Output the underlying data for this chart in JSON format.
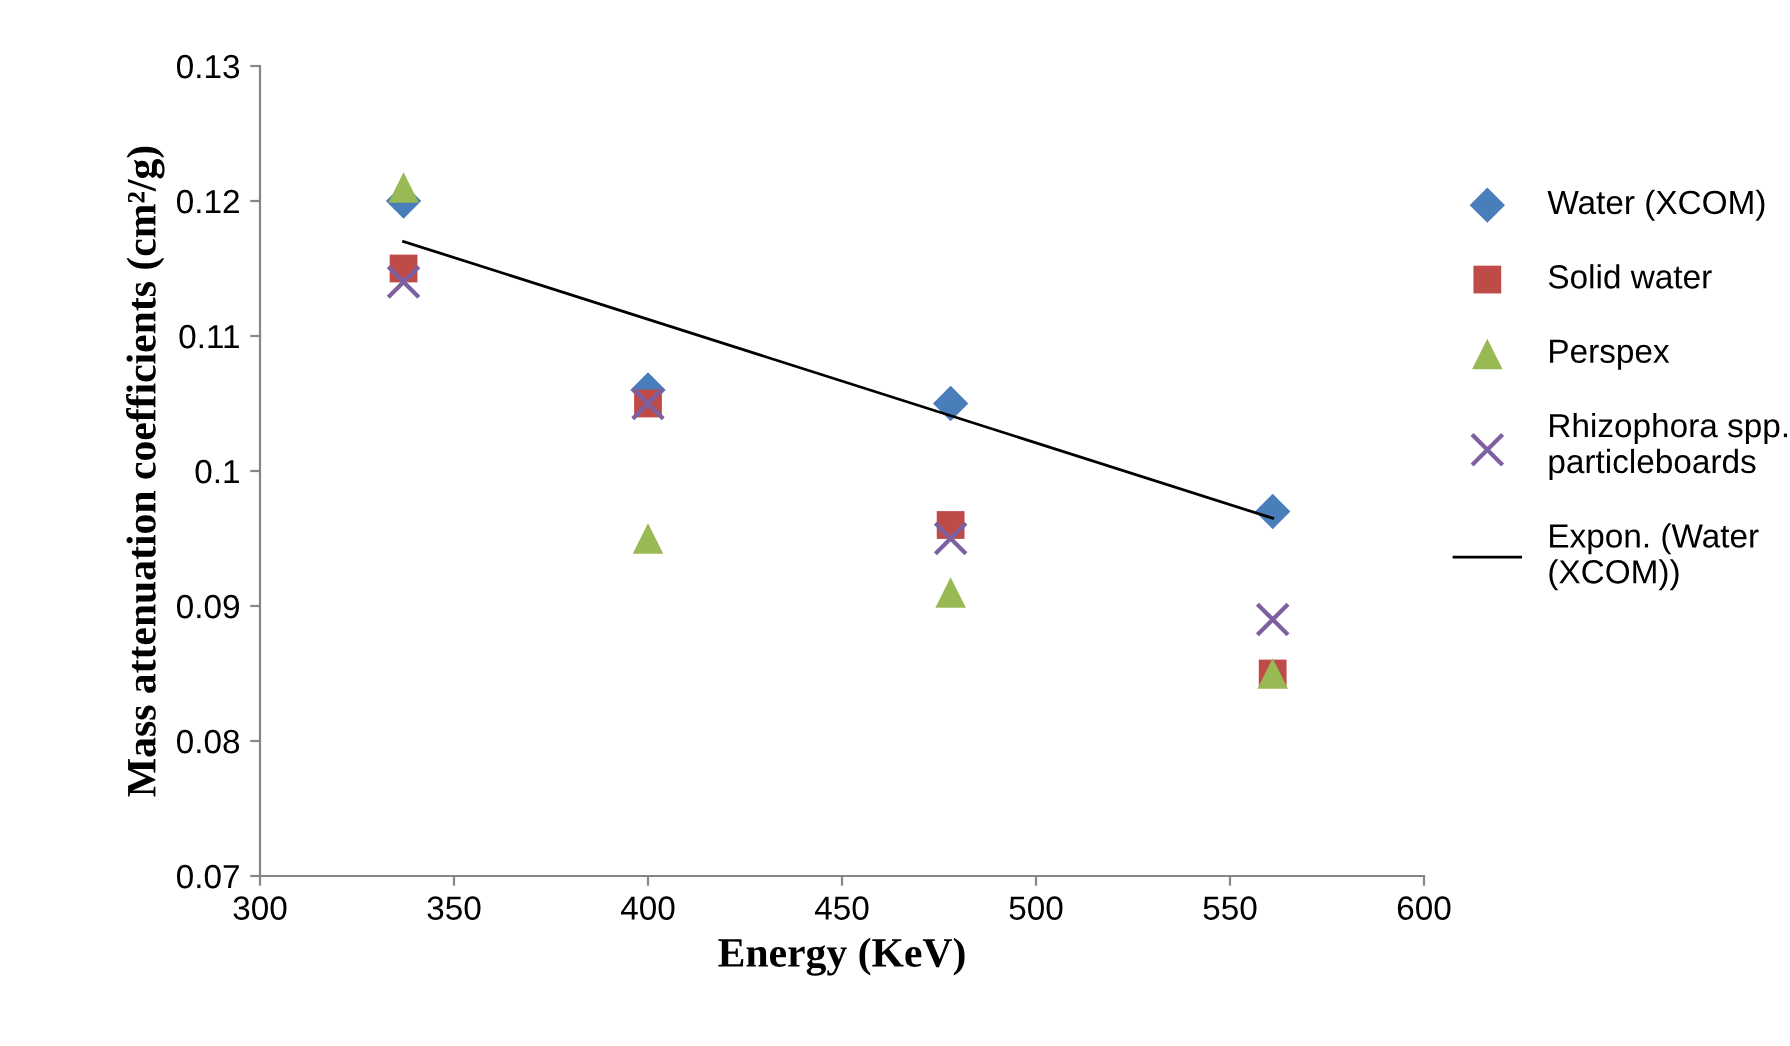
{
  "chart_data": {
    "type": "scatter",
    "xlabel": "Energy (KeV)",
    "ylabel": "Mass attenuation coefficients (cm²/g)",
    "x": [
      337,
      400,
      478,
      561
    ],
    "series": [
      {
        "name": "Water (XCOM)",
        "color": "#4a7ebb",
        "marker": "diamond",
        "values": [
          0.12,
          0.106,
          0.105,
          0.097
        ]
      },
      {
        "name": "Solid water",
        "color": "#be4b48",
        "marker": "square",
        "values": [
          0.115,
          0.105,
          0.096,
          0.085
        ]
      },
      {
        "name": "Perspex",
        "color": "#98b954",
        "marker": "triangle",
        "values": [
          0.121,
          0.095,
          0.091,
          0.085
        ]
      },
      {
        "name": "Rhizophora spp. particleboards",
        "color": "#7d60a0",
        "marker": "cross",
        "values": [
          0.114,
          0.105,
          0.095,
          0.089
        ]
      },
      {
        "name": "Expon. (Water (XCOM))",
        "type": "line",
        "color": "#000000",
        "marker": "none",
        "x": [
          337,
          561
        ],
        "values": [
          0.117,
          0.0965
        ]
      }
    ],
    "xlim": [
      300,
      600
    ],
    "xticks": [
      300,
      350,
      400,
      450,
      500,
      550,
      600
    ],
    "ylim": [
      0.07,
      0.13
    ],
    "yticks": [
      0.07,
      0.08,
      0.09,
      0.1,
      0.11,
      0.12,
      0.13
    ],
    "grid": false,
    "legend": "right"
  }
}
